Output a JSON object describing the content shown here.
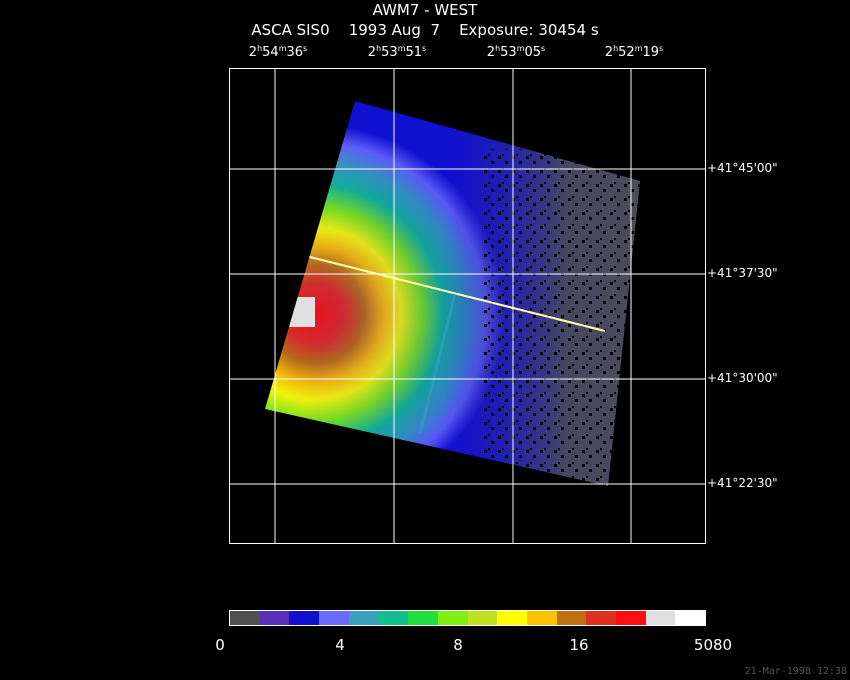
{
  "header": {
    "title": "AWM7 - WEST",
    "subtitle": "ASCA SIS0    1993 Aug  7    Exposure: 30454 s"
  },
  "ra_labels": [
    {
      "h": "2",
      "m": "54",
      "s": "36"
    },
    {
      "h": "2",
      "m": "53",
      "s": "51"
    },
    {
      "h": "2",
      "m": "53",
      "s": "05"
    },
    {
      "h": "2",
      "m": "52",
      "s": "19"
    }
  ],
  "dec_labels": [
    "+41°45'00\"",
    "+41°37'30\"",
    "+41°30'00\"",
    "+41°22'30\""
  ],
  "colorbar": {
    "colors": [
      "#505050",
      "#5a30b8",
      "#1010d0",
      "#6a6aff",
      "#3aa0c0",
      "#10c090",
      "#20e040",
      "#80f010",
      "#c0e020",
      "#ffff00",
      "#ffc000",
      "#c07010",
      "#e03020",
      "#ff1010",
      "#e0e0e0",
      "#ffffff"
    ],
    "labels": [
      "0",
      "4",
      "8",
      "16",
      "5080"
    ]
  },
  "footer": {
    "timestamp": "21-Mar-1998 12:38"
  }
}
